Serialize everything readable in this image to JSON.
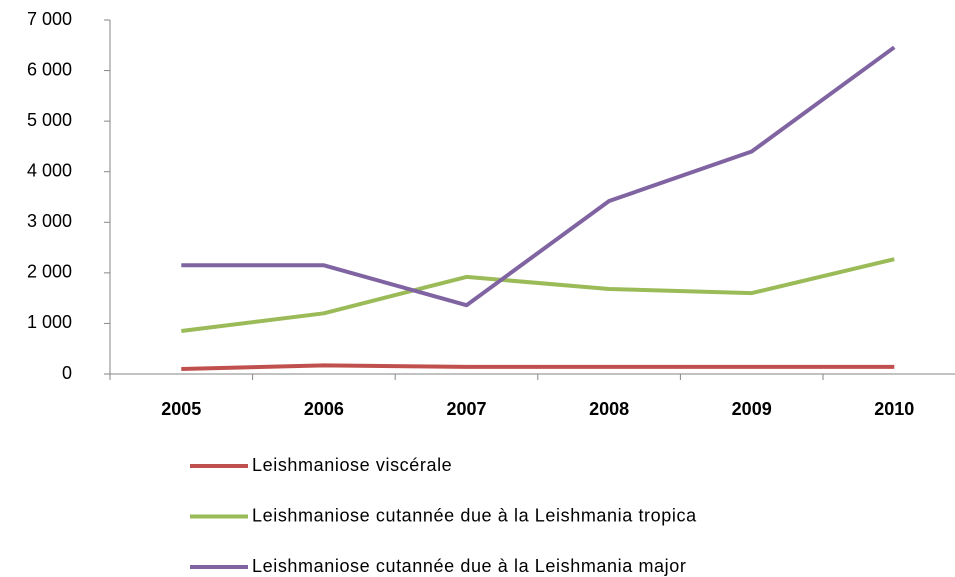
{
  "chart_data": {
    "type": "line",
    "categories": [
      "2005",
      "2006",
      "2007",
      "2008",
      "2009",
      "2010"
    ],
    "series": [
      {
        "name": "Leishmaniose viscérale",
        "color": "#c0504d",
        "values": [
          100,
          170,
          140,
          140,
          140,
          140
        ]
      },
      {
        "name": "Leishmaniose cutannée due à la Leishmania tropica",
        "color": "#9bbb59",
        "values": [
          850,
          1200,
          1920,
          1680,
          1600,
          2270
        ]
      },
      {
        "name": "Leishmaniose cutannée due à la Leishmania major",
        "color": "#8064a2",
        "values": [
          2150,
          2150,
          1360,
          3420,
          4400,
          6460
        ]
      }
    ],
    "ylim": [
      0,
      7000
    ],
    "yticks": [
      0,
      {
        "value": 1000,
        "label": "1 000"
      },
      {
        "value": 2000,
        "label": "2 000"
      },
      {
        "value": 3000,
        "label": "3 000"
      },
      {
        "value": 4000,
        "label": "4 000"
      },
      {
        "value": 5000,
        "label": "5 000"
      },
      {
        "value": 6000,
        "label": "6 000"
      },
      {
        "value": 7000,
        "label": "7 000"
      }
    ],
    "grid": false,
    "legend": "bottom"
  }
}
